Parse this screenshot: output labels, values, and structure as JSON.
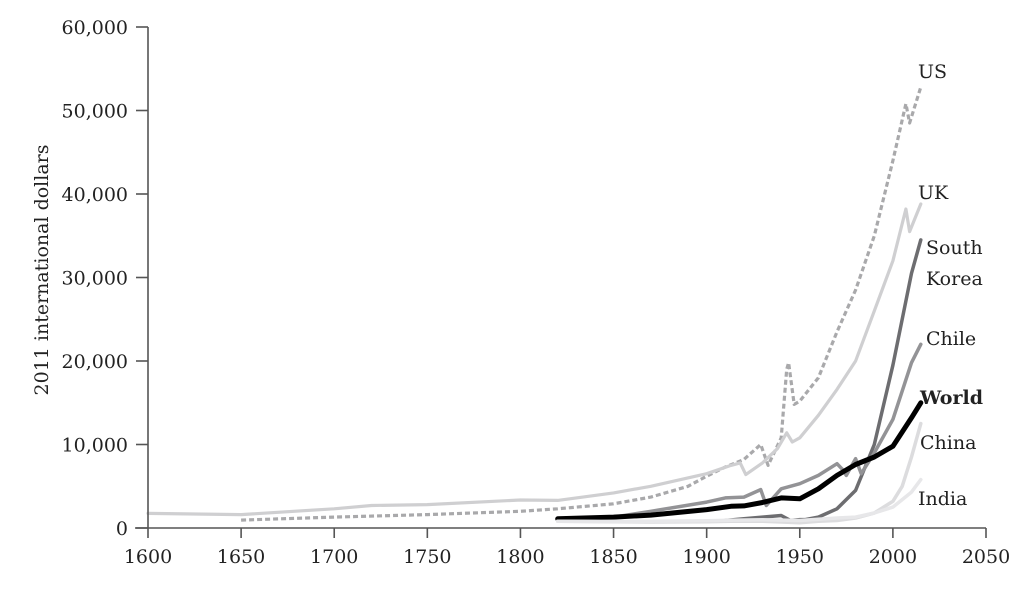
{
  "chart_data": {
    "type": "line",
    "title": "",
    "xlabel": "",
    "ylabel": "2011 international dollars",
    "xlim": [
      1600,
      2050
    ],
    "ylim": [
      0,
      60000
    ],
    "x_ticks": [
      1600,
      1650,
      1700,
      1750,
      1800,
      1850,
      1900,
      1950,
      2000,
      2050
    ],
    "y_ticks": [
      0,
      10000,
      20000,
      30000,
      40000,
      50000,
      60000
    ],
    "y_tick_labels": [
      "0",
      "10,000",
      "20,000",
      "30,000",
      "40,000",
      "50,000",
      "60,000"
    ],
    "grid": false,
    "legend": "direct labels at line ends",
    "series": [
      {
        "name": "US",
        "color": "#a9a9ab",
        "width": 3.2,
        "dash": "5 3",
        "bold": false,
        "points": [
          [
            1650,
            950
          ],
          [
            1700,
            1300
          ],
          [
            1750,
            1600
          ],
          [
            1800,
            2000
          ],
          [
            1820,
            2300
          ],
          [
            1850,
            2900
          ],
          [
            1870,
            3700
          ],
          [
            1890,
            5000
          ],
          [
            1900,
            6200
          ],
          [
            1910,
            7300
          ],
          [
            1920,
            8200
          ],
          [
            1929,
            10000
          ],
          [
            1933,
            7500
          ],
          [
            1940,
            10800
          ],
          [
            1943,
            19000
          ],
          [
            1944,
            19800
          ],
          [
            1947,
            14800
          ],
          [
            1950,
            15200
          ],
          [
            1960,
            18000
          ],
          [
            1970,
            23500
          ],
          [
            1980,
            28500
          ],
          [
            1990,
            35000
          ],
          [
            2000,
            44000
          ],
          [
            2007,
            50800
          ],
          [
            2009,
            48500
          ],
          [
            2015,
            52800
          ]
        ]
      },
      {
        "name": "UK",
        "color": "#cfcfd1",
        "width": 3.2,
        "dash": "",
        "bold": false,
        "points": [
          [
            1600,
            1750
          ],
          [
            1650,
            1600
          ],
          [
            1700,
            2300
          ],
          [
            1720,
            2700
          ],
          [
            1750,
            2800
          ],
          [
            1800,
            3350
          ],
          [
            1820,
            3300
          ],
          [
            1850,
            4200
          ],
          [
            1870,
            5000
          ],
          [
            1900,
            6500
          ],
          [
            1913,
            7500
          ],
          [
            1918,
            7800
          ],
          [
            1921,
            6400
          ],
          [
            1930,
            7800
          ],
          [
            1938,
            9500
          ],
          [
            1943,
            11400
          ],
          [
            1946,
            10300
          ],
          [
            1950,
            10800
          ],
          [
            1960,
            13500
          ],
          [
            1970,
            16600
          ],
          [
            1980,
            20000
          ],
          [
            1990,
            26000
          ],
          [
            2000,
            32000
          ],
          [
            2007,
            38200
          ],
          [
            2009,
            35500
          ],
          [
            2015,
            38800
          ]
        ]
      },
      {
        "name": "South Korea",
        "color": "#6d6d70",
        "width": 3.5,
        "dash": "",
        "bold": false,
        "points": [
          [
            1910,
            900
          ],
          [
            1920,
            1100
          ],
          [
            1930,
            1300
          ],
          [
            1940,
            1500
          ],
          [
            1945,
            900
          ],
          [
            1950,
            1000
          ],
          [
            1953,
            1000
          ],
          [
            1960,
            1300
          ],
          [
            1970,
            2300
          ],
          [
            1980,
            4500
          ],
          [
            1990,
            10000
          ],
          [
            2000,
            19500
          ],
          [
            2010,
            30500
          ],
          [
            2015,
            34500
          ]
        ]
      },
      {
        "name": "Chile",
        "color": "#939396",
        "width": 3.5,
        "dash": "",
        "bold": false,
        "points": [
          [
            1820,
            1000
          ],
          [
            1850,
            1300
          ],
          [
            1870,
            2000
          ],
          [
            1900,
            3100
          ],
          [
            1910,
            3600
          ],
          [
            1920,
            3700
          ],
          [
            1929,
            4600
          ],
          [
            1932,
            2700
          ],
          [
            1940,
            4700
          ],
          [
            1950,
            5300
          ],
          [
            1960,
            6300
          ],
          [
            1970,
            7700
          ],
          [
            1973,
            7000
          ],
          [
            1975,
            6300
          ],
          [
            1980,
            8300
          ],
          [
            1983,
            6500
          ],
          [
            1990,
            9000
          ],
          [
            2000,
            13000
          ],
          [
            2010,
            19800
          ],
          [
            2015,
            22000
          ]
        ]
      },
      {
        "name": "World",
        "color": "#000000",
        "width": 5,
        "dash": "",
        "bold": true,
        "points": [
          [
            1820,
            1100
          ],
          [
            1850,
            1300
          ],
          [
            1870,
            1550
          ],
          [
            1900,
            2200
          ],
          [
            1913,
            2600
          ],
          [
            1920,
            2650
          ],
          [
            1930,
            3050
          ],
          [
            1940,
            3600
          ],
          [
            1950,
            3500
          ],
          [
            1960,
            4700
          ],
          [
            1970,
            6300
          ],
          [
            1980,
            7600
          ],
          [
            1990,
            8500
          ],
          [
            2000,
            9800
          ],
          [
            2010,
            13200
          ],
          [
            2015,
            15000
          ]
        ]
      },
      {
        "name": "China",
        "color": "#dcdcde",
        "width": 3.5,
        "dash": "",
        "bold": false,
        "points": [
          [
            1820,
            800
          ],
          [
            1850,
            750
          ],
          [
            1870,
            720
          ],
          [
            1900,
            750
          ],
          [
            1913,
            800
          ],
          [
            1930,
            820
          ],
          [
            1950,
            620
          ],
          [
            1960,
            800
          ],
          [
            1970,
            900
          ],
          [
            1980,
            1200
          ],
          [
            1990,
            1800
          ],
          [
            2000,
            3200
          ],
          [
            2005,
            5000
          ],
          [
            2010,
            8500
          ],
          [
            2015,
            12500
          ]
        ]
      },
      {
        "name": "India",
        "color": "#e7e7e9",
        "width": 3.5,
        "dash": "",
        "bold": false,
        "points": [
          [
            1820,
            800
          ],
          [
            1850,
            780
          ],
          [
            1870,
            800
          ],
          [
            1900,
            880
          ],
          [
            1913,
            940
          ],
          [
            1930,
            980
          ],
          [
            1940,
            950
          ],
          [
            1950,
            900
          ],
          [
            1960,
            1050
          ],
          [
            1970,
            1200
          ],
          [
            1980,
            1300
          ],
          [
            1990,
            1800
          ],
          [
            2000,
            2500
          ],
          [
            2010,
            4300
          ],
          [
            2015,
            5800
          ]
        ]
      }
    ]
  },
  "labels": {
    "us": "US",
    "uk": "UK",
    "south_korea_line1": "South",
    "south_korea_line2": "Korea",
    "chile": "Chile",
    "world": "World",
    "china": "China",
    "india": "India"
  }
}
